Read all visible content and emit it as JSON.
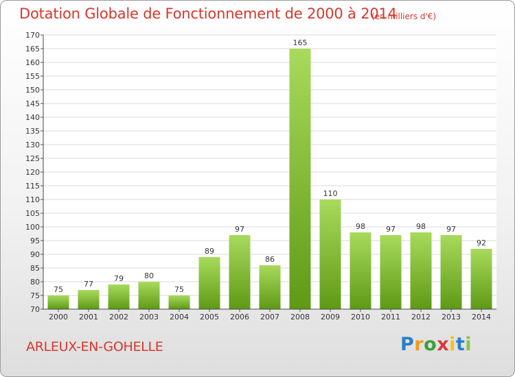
{
  "header": {
    "title": "Dotation Globale de Fonctionnement de 2000 à 2014",
    "subtitle": "(en milliers d'€)"
  },
  "footer": {
    "commune": "ARLEUX-EN-GOHELLE",
    "logo": "Proxiti"
  },
  "colors": {
    "title": "#d7372c",
    "bar_top": "#a8da5c",
    "bar_bottom": "#5e9a15",
    "grid": "#d9d9d9"
  },
  "chart_data": {
    "type": "bar",
    "categories": [
      "2000",
      "2001",
      "2002",
      "2003",
      "2004",
      "2005",
      "2006",
      "2007",
      "2008",
      "2009",
      "2010",
      "2011",
      "2012",
      "2013",
      "2014"
    ],
    "values": [
      75,
      77,
      79,
      80,
      75,
      89,
      97,
      86,
      165,
      110,
      98,
      97,
      98,
      97,
      92
    ],
    "title": "Dotation Globale de Fonctionnement de 2000 à 2014",
    "subtitle": "(en milliers d'€)",
    "xlabel": "",
    "ylabel": "",
    "ylim": [
      70,
      170
    ],
    "ytick_step": 5,
    "grid": true,
    "data_labels": true
  }
}
